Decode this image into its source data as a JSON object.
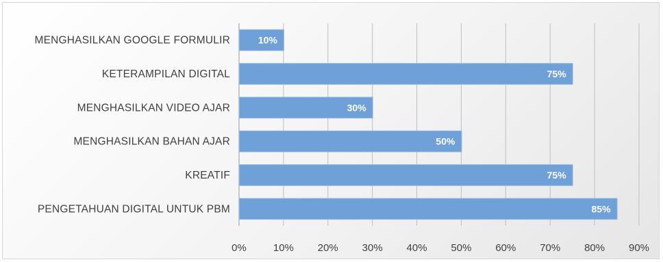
{
  "chart_data": {
    "type": "bar",
    "orientation": "horizontal",
    "title": "",
    "xlabel": "",
    "ylabel": "",
    "categories": [
      "MENGHASILKAN GOOGLE FORMULIR",
      "KETERAMPILAN DIGITAL",
      "MENGHASILKAN VIDEO AJAR",
      "MENGHASILKAN BAHAN AJAR",
      "KREATIF",
      "PENGETAHUAN DIGITAL UNTUK PBM"
    ],
    "values": [
      10,
      75,
      30,
      50,
      75,
      85
    ],
    "data_labels": [
      "10%",
      "75%",
      "30%",
      "50%",
      "75%",
      "85%"
    ],
    "xlim": [
      0,
      90
    ],
    "x_ticks": [
      0,
      10,
      20,
      30,
      40,
      50,
      60,
      70,
      80,
      90
    ],
    "x_tick_labels": [
      "0%",
      "10%",
      "20%",
      "30%",
      "40%",
      "50%",
      "60%",
      "70%",
      "80%",
      "90%"
    ],
    "grid": true,
    "legend": "none",
    "bar_color": "#6fa1d8"
  }
}
